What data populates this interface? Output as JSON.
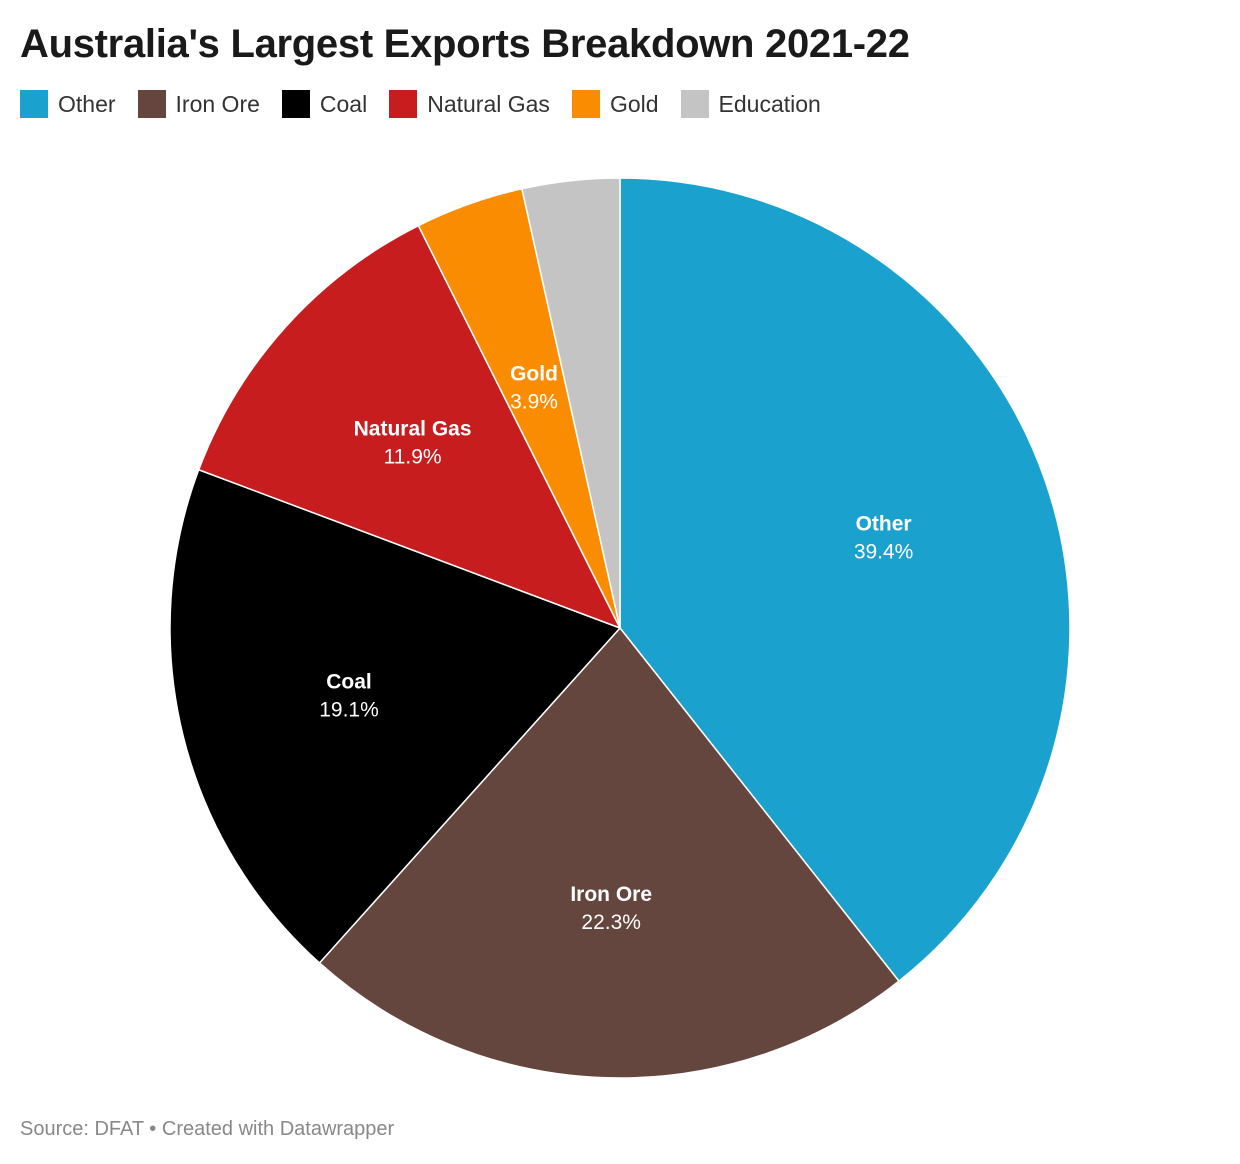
{
  "title": "Australia's Largest Exports Breakdown 2021-22",
  "footer": {
    "source_label": "Source: DFAT",
    "separator": " • ",
    "credit": "Created with Datawrapper"
  },
  "chart_data": {
    "type": "pie",
    "title": "Australia's Largest Exports Breakdown 2021-22",
    "legend_position": "top-left",
    "start_angle": "12 o'clock, clockwise",
    "slices": [
      {
        "name": "Other",
        "value": 39.4,
        "value_label": "39.4%",
        "color": "#1aa1ce",
        "show_label": true
      },
      {
        "name": "Iron Ore",
        "value": 22.3,
        "value_label": "22.3%",
        "color": "#65463e",
        "show_label": true
      },
      {
        "name": "Coal",
        "value": 19.1,
        "value_label": "19.1%",
        "color": "#000000",
        "show_label": true
      },
      {
        "name": "Natural Gas",
        "value": 11.9,
        "value_label": "11.9%",
        "color": "#c71d1e",
        "show_label": true
      },
      {
        "name": "Gold",
        "value": 3.9,
        "value_label": "3.9%",
        "color": "#f98c00",
        "show_label": true
      },
      {
        "name": "Education",
        "value": 3.5,
        "value_label": "",
        "color": "#c4c4c4",
        "show_label": false
      }
    ]
  }
}
